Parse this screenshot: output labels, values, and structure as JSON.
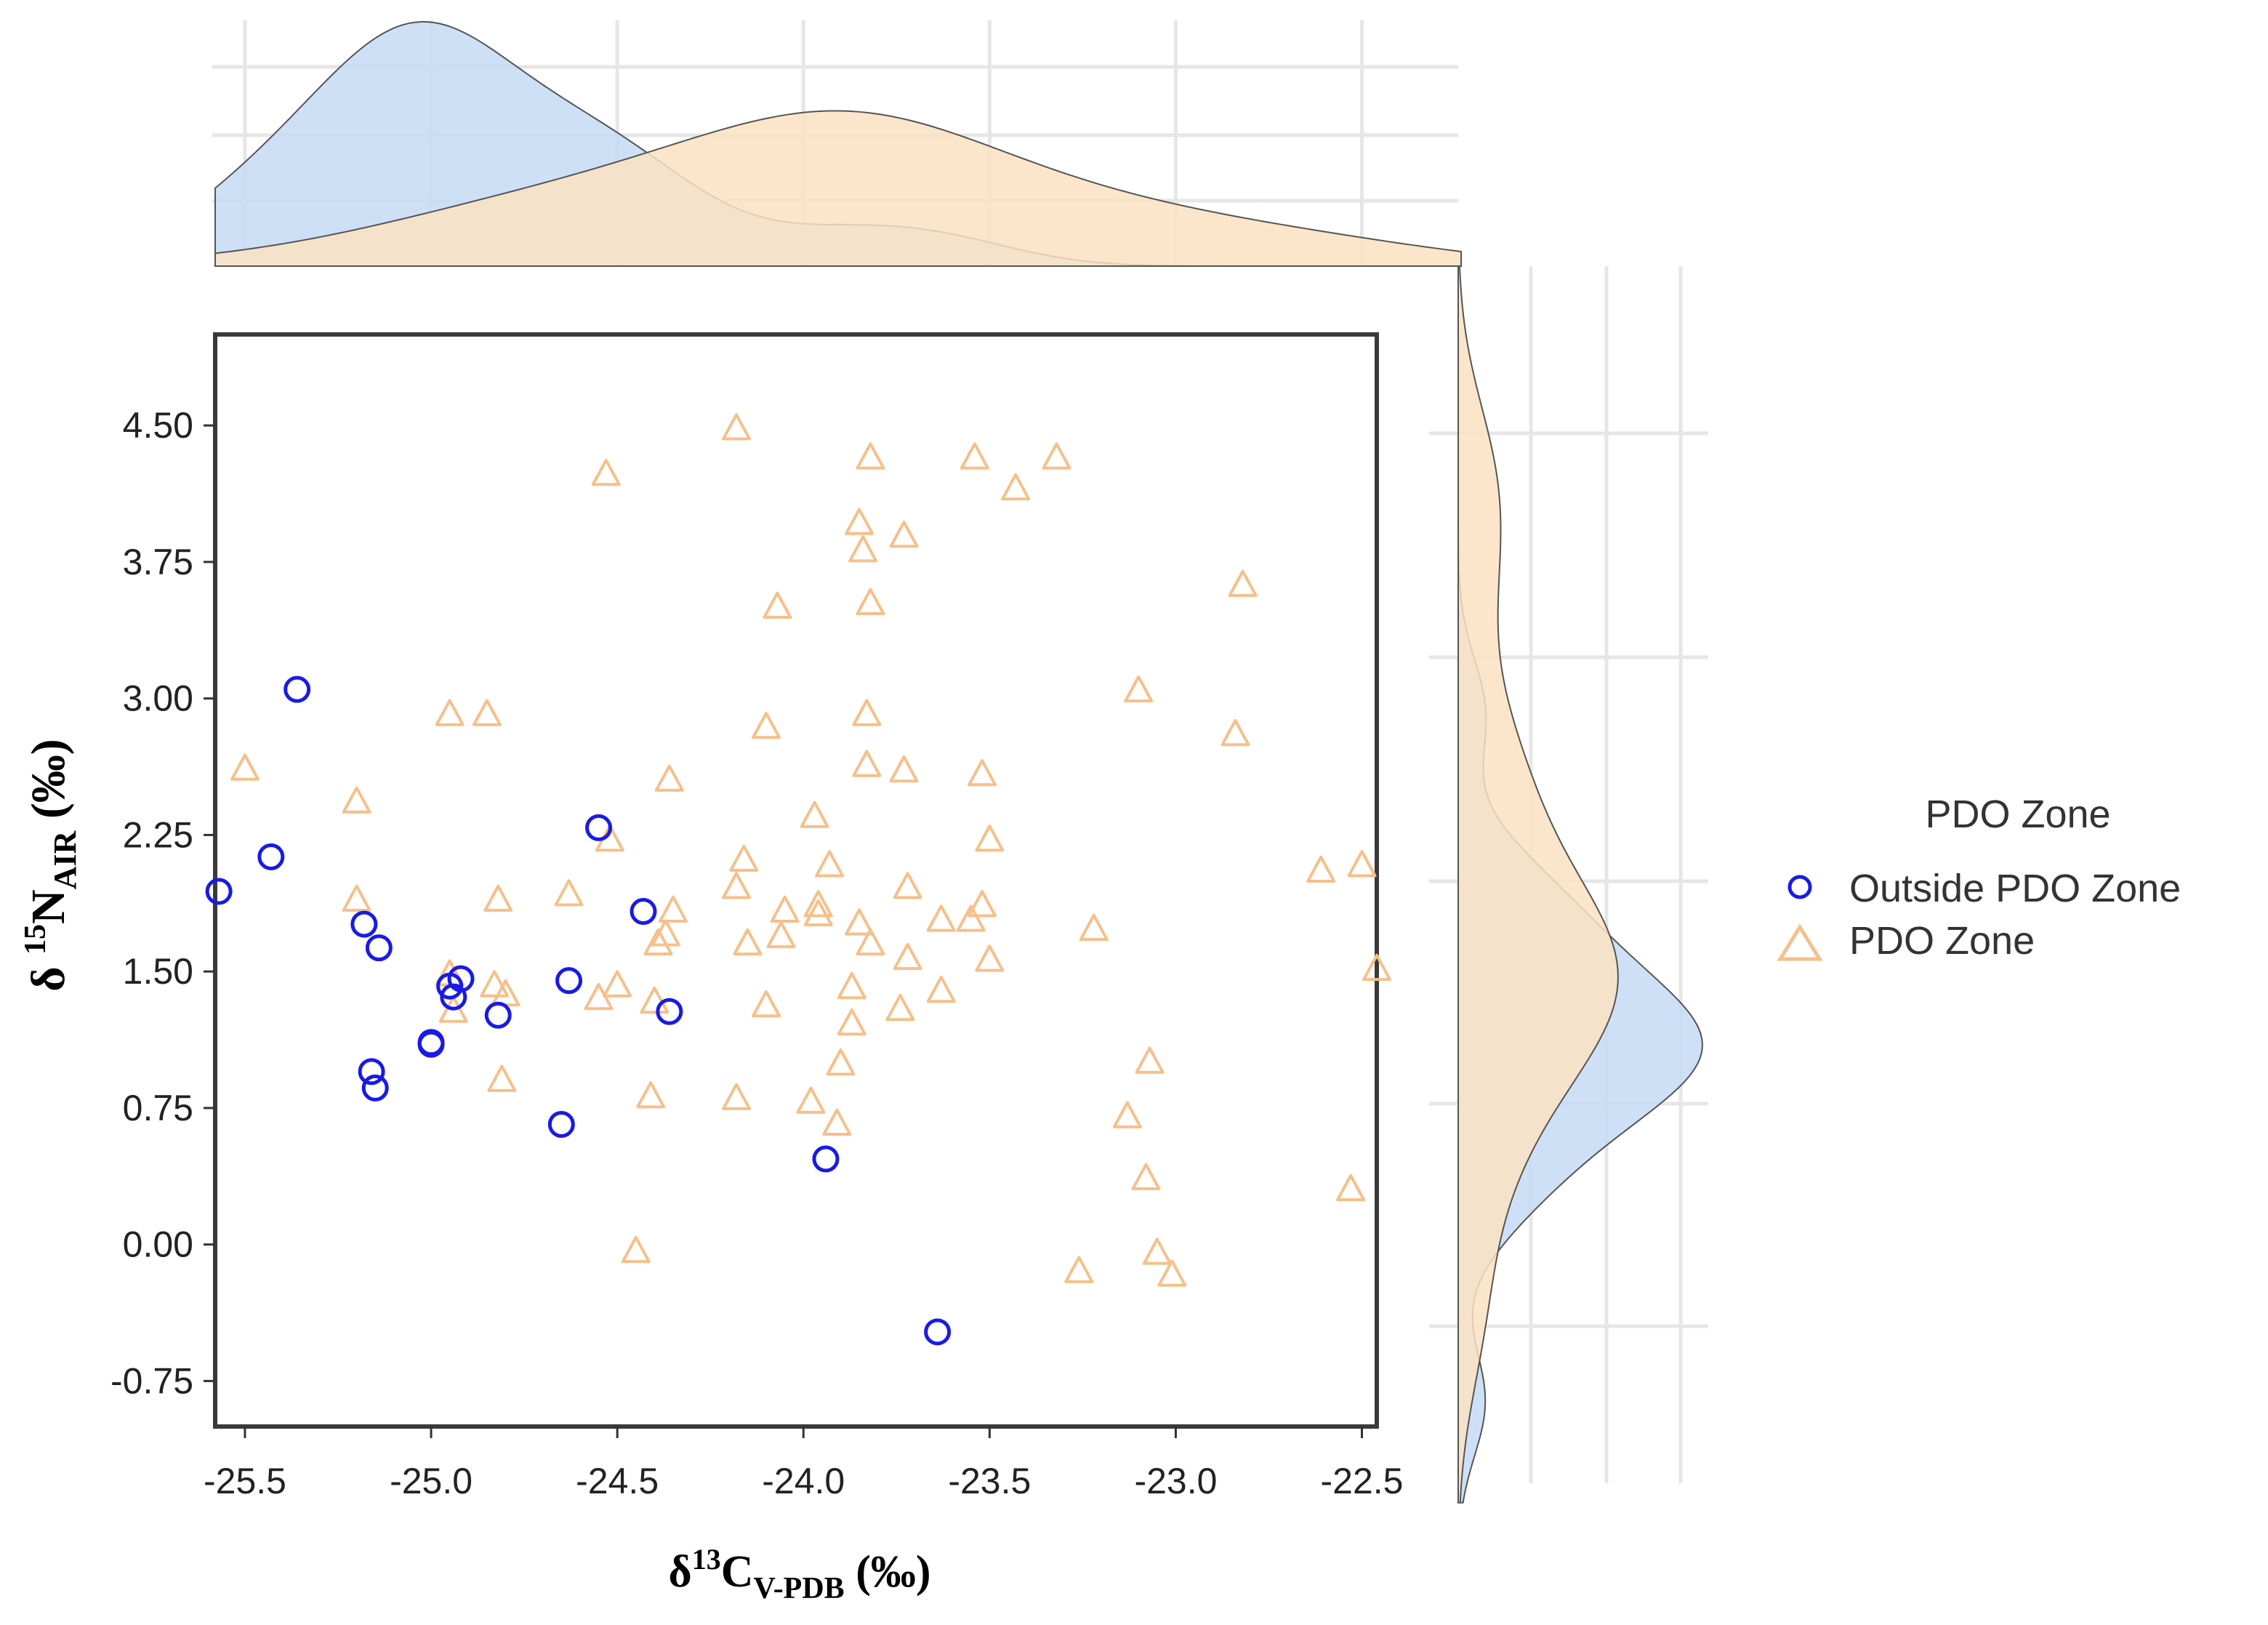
{
  "chart_data": {
    "type": "scatter",
    "title": "",
    "xlabel": {
      "prefix": "δ",
      "sup": "13",
      "main": "C",
      "sub": "V-PDB",
      "suffix": " (‰)"
    },
    "ylabel": {
      "prefix": "δ ",
      "sup": "15",
      "main": "N",
      "sub": "AIR",
      "suffix": " (‰)"
    },
    "xlim": [
      -25.58,
      -22.46
    ],
    "ylim": [
      -1.0,
      5.0
    ],
    "x_ticks": [
      -25.5,
      -25.0,
      -24.5,
      -24.0,
      -23.5,
      -23.0,
      -22.5
    ],
    "x_tick_labels": [
      "-25.5",
      "-25.0",
      "-24.5",
      "-24.0",
      "-23.5",
      "-23.0",
      "-22.5"
    ],
    "y_ticks": [
      -0.75,
      0.0,
      0.75,
      1.5,
      2.25,
      3.0,
      3.75,
      4.5
    ],
    "y_tick_labels": [
      "-0.75",
      "0.00",
      "0.75",
      "1.50",
      "2.25",
      "3.00",
      "3.75",
      "4.50"
    ],
    "legend": {
      "title": "PDO Zone",
      "position": "right",
      "entries": [
        "Outside PDO Zone",
        "PDO Zone"
      ]
    },
    "series": [
      {
        "name": "Outside PDO Zone",
        "marker": "circle",
        "color": "#1a1ae6",
        "density_fill": "#c5daf5",
        "points": [
          [
            -25.57,
            1.94
          ],
          [
            -25.43,
            2.13
          ],
          [
            -25.36,
            3.05
          ],
          [
            -25.18,
            1.76
          ],
          [
            -25.14,
            1.63
          ],
          [
            -25.16,
            0.95
          ],
          [
            -25.15,
            0.86
          ],
          [
            -25.0,
            1.11
          ],
          [
            -25.0,
            1.1
          ],
          [
            -24.95,
            1.42
          ],
          [
            -24.94,
            1.36
          ],
          [
            -24.92,
            1.46
          ],
          [
            -24.82,
            1.26
          ],
          [
            -24.65,
            0.66
          ],
          [
            -24.63,
            1.45
          ],
          [
            -24.55,
            2.29
          ],
          [
            -24.43,
            1.83
          ],
          [
            -24.36,
            1.28
          ],
          [
            -23.94,
            0.47
          ],
          [
            -23.64,
            -0.48
          ]
        ]
      },
      {
        "name": "PDO Zone",
        "marker": "triangle",
        "color": "#f5c08a",
        "density_fill": "#fbe2c2",
        "points": [
          [
            -24.18,
            4.48
          ],
          [
            -24.53,
            4.23
          ],
          [
            -23.82,
            4.32
          ],
          [
            -23.54,
            4.32
          ],
          [
            -23.32,
            4.32
          ],
          [
            -23.43,
            4.15
          ],
          [
            -23.85,
            3.96
          ],
          [
            -23.73,
            3.89
          ],
          [
            -23.84,
            3.81
          ],
          [
            -22.82,
            3.62
          ],
          [
            -24.07,
            3.5
          ],
          [
            -23.82,
            3.52
          ],
          [
            -24.95,
            2.91
          ],
          [
            -24.85,
            2.91
          ],
          [
            -23.83,
            2.91
          ],
          [
            -24.1,
            2.84
          ],
          [
            -23.1,
            3.04
          ],
          [
            -22.84,
            2.8
          ],
          [
            -25.5,
            2.61
          ],
          [
            -23.83,
            2.63
          ],
          [
            -23.73,
            2.6
          ],
          [
            -23.52,
            2.58
          ],
          [
            -24.36,
            2.55
          ],
          [
            -25.2,
            2.43
          ],
          [
            -23.97,
            2.35
          ],
          [
            -24.52,
            2.22
          ],
          [
            -23.5,
            2.22
          ],
          [
            -24.16,
            2.11
          ],
          [
            -23.93,
            2.08
          ],
          [
            -22.61,
            2.05
          ],
          [
            -22.5,
            2.08
          ],
          [
            -24.18,
            1.96
          ],
          [
            -23.72,
            1.96
          ],
          [
            -25.2,
            1.89
          ],
          [
            -24.82,
            1.89
          ],
          [
            -24.63,
            1.92
          ],
          [
            -23.96,
            1.86
          ],
          [
            -24.05,
            1.83
          ],
          [
            -24.35,
            1.83
          ],
          [
            -23.96,
            1.81
          ],
          [
            -23.52,
            1.86
          ],
          [
            -23.85,
            1.76
          ],
          [
            -23.63,
            1.78
          ],
          [
            -23.55,
            1.78
          ],
          [
            -24.06,
            1.69
          ],
          [
            -24.37,
            1.7
          ],
          [
            -23.22,
            1.73
          ],
          [
            -24.15,
            1.65
          ],
          [
            -24.39,
            1.65
          ],
          [
            -23.82,
            1.65
          ],
          [
            -23.72,
            1.57
          ],
          [
            -23.5,
            1.56
          ],
          [
            -24.95,
            1.48
          ],
          [
            -24.83,
            1.42
          ],
          [
            -24.8,
            1.37
          ],
          [
            -24.5,
            1.42
          ],
          [
            -24.55,
            1.35
          ],
          [
            -23.87,
            1.41
          ],
          [
            -23.63,
            1.39
          ],
          [
            -22.46,
            1.51
          ],
          [
            -24.94,
            1.28
          ],
          [
            -24.4,
            1.33
          ],
          [
            -24.1,
            1.31
          ],
          [
            -23.74,
            1.29
          ],
          [
            -23.87,
            1.21
          ],
          [
            -24.81,
            0.9
          ],
          [
            -24.41,
            0.81
          ],
          [
            -24.18,
            0.8
          ],
          [
            -23.98,
            0.78
          ],
          [
            -23.9,
            0.99
          ],
          [
            -23.07,
            1.0
          ],
          [
            -23.13,
            0.7
          ],
          [
            -23.91,
            0.66
          ],
          [
            -23.08,
            0.36
          ],
          [
            -22.53,
            0.3
          ],
          [
            -24.45,
            -0.04
          ],
          [
            -23.05,
            -0.05
          ],
          [
            -23.01,
            -0.17
          ],
          [
            -23.26,
            -0.15
          ]
        ]
      }
    ]
  }
}
